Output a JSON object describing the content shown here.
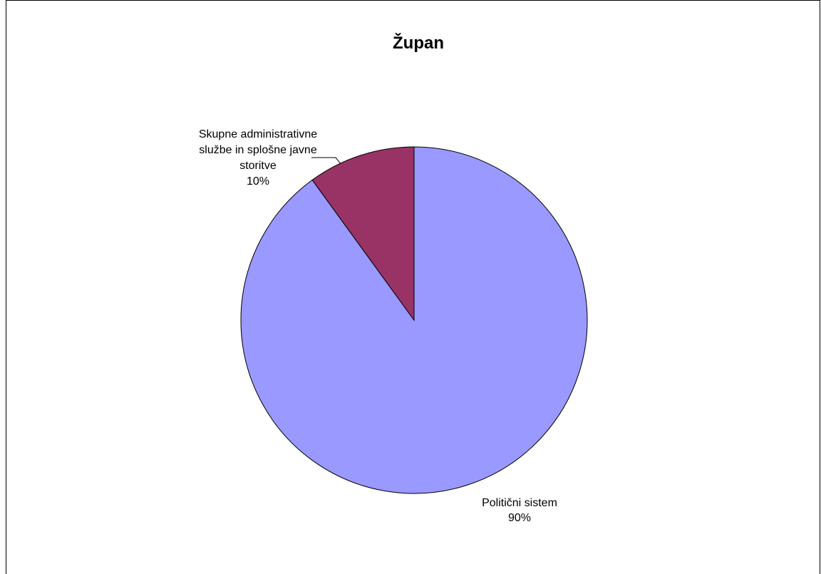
{
  "chart_data": {
    "type": "pie",
    "title": "Župan",
    "slices": [
      {
        "label": [
          "Politični sistem"
        ],
        "percent_label": "90%",
        "value": 90,
        "color": "#9999FF"
      },
      {
        "label": [
          "Skupne administrativne",
          "službe in splošne javne",
          "storitve"
        ],
        "percent_label": "10%",
        "value": 10,
        "color": "#993366"
      }
    ],
    "start_angle_deg": 0,
    "direction": "clockwise",
    "legend": "none",
    "data_labels": "outside with leader line"
  }
}
